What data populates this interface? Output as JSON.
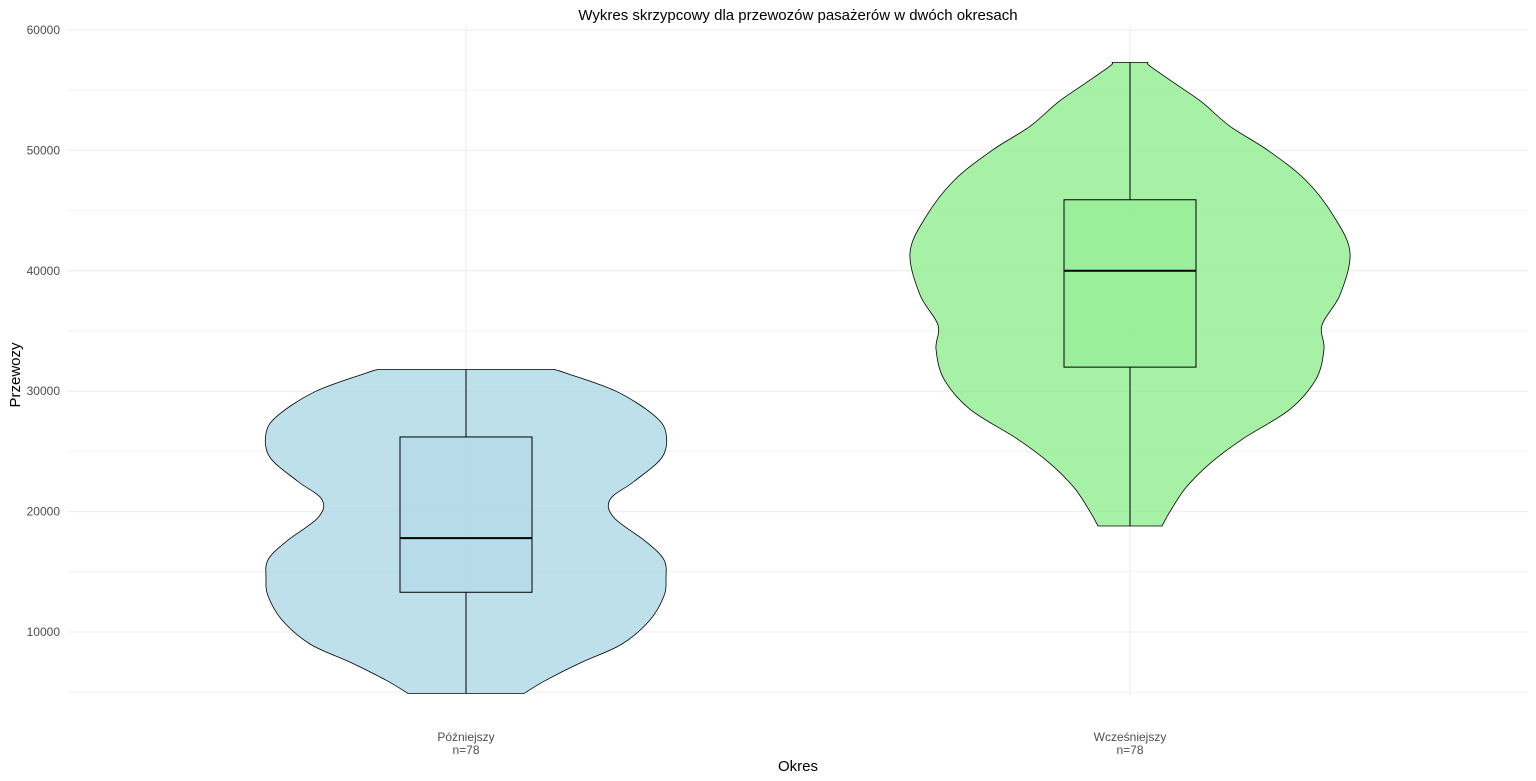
{
  "chart_data": {
    "type": "violin",
    "title": "Wykres skrzypcowy dla przewozów pasażerów w dwóch okresach",
    "xlabel": "Okres",
    "ylabel": "Przewozy",
    "ylim": [
      4000,
      60000
    ],
    "yticks": [
      10000,
      20000,
      30000,
      40000,
      50000,
      60000
    ],
    "grid": true,
    "legend": "none",
    "categories": [
      {
        "name": "Późniejszy",
        "count_label": "n=78",
        "fill": "#add8e6",
        "box": {
          "min": 4900,
          "q1": 13300,
          "median": 17800,
          "q3": 26200,
          "max": 31800
        },
        "density": [
          [
            4900,
            0.29
          ],
          [
            6000,
            0.4
          ],
          [
            7500,
            0.58
          ],
          [
            9000,
            0.78
          ],
          [
            11000,
            0.92
          ],
          [
            13000,
            0.99
          ],
          [
            14500,
            1.0
          ],
          [
            16000,
            0.99
          ],
          [
            17500,
            0.9
          ],
          [
            19500,
            0.74
          ],
          [
            21000,
            0.72
          ],
          [
            22500,
            0.84
          ],
          [
            24500,
            0.98
          ],
          [
            26500,
            1.0
          ],
          [
            28000,
            0.94
          ],
          [
            30000,
            0.75
          ],
          [
            31500,
            0.5
          ],
          [
            31800,
            0.44
          ]
        ]
      },
      {
        "name": "Wcześniejszy",
        "count_label": "n=78",
        "fill": "#90ee90",
        "box": {
          "min": 18800,
          "q1": 32000,
          "median": 40000,
          "q3": 45900,
          "max": 57300
        },
        "density": [
          [
            18800,
            0.16
          ],
          [
            20000,
            0.2
          ],
          [
            22000,
            0.28
          ],
          [
            24000,
            0.4
          ],
          [
            26000,
            0.56
          ],
          [
            28500,
            0.8
          ],
          [
            31000,
            0.93
          ],
          [
            33500,
            0.97
          ],
          [
            35500,
            0.96
          ],
          [
            38000,
            1.05
          ],
          [
            41500,
            1.1
          ],
          [
            44500,
            1.02
          ],
          [
            47500,
            0.88
          ],
          [
            50000,
            0.69
          ],
          [
            52000,
            0.5
          ],
          [
            54000,
            0.36
          ],
          [
            55500,
            0.23
          ],
          [
            57000,
            0.1
          ],
          [
            57300,
            0.09
          ]
        ]
      }
    ]
  }
}
